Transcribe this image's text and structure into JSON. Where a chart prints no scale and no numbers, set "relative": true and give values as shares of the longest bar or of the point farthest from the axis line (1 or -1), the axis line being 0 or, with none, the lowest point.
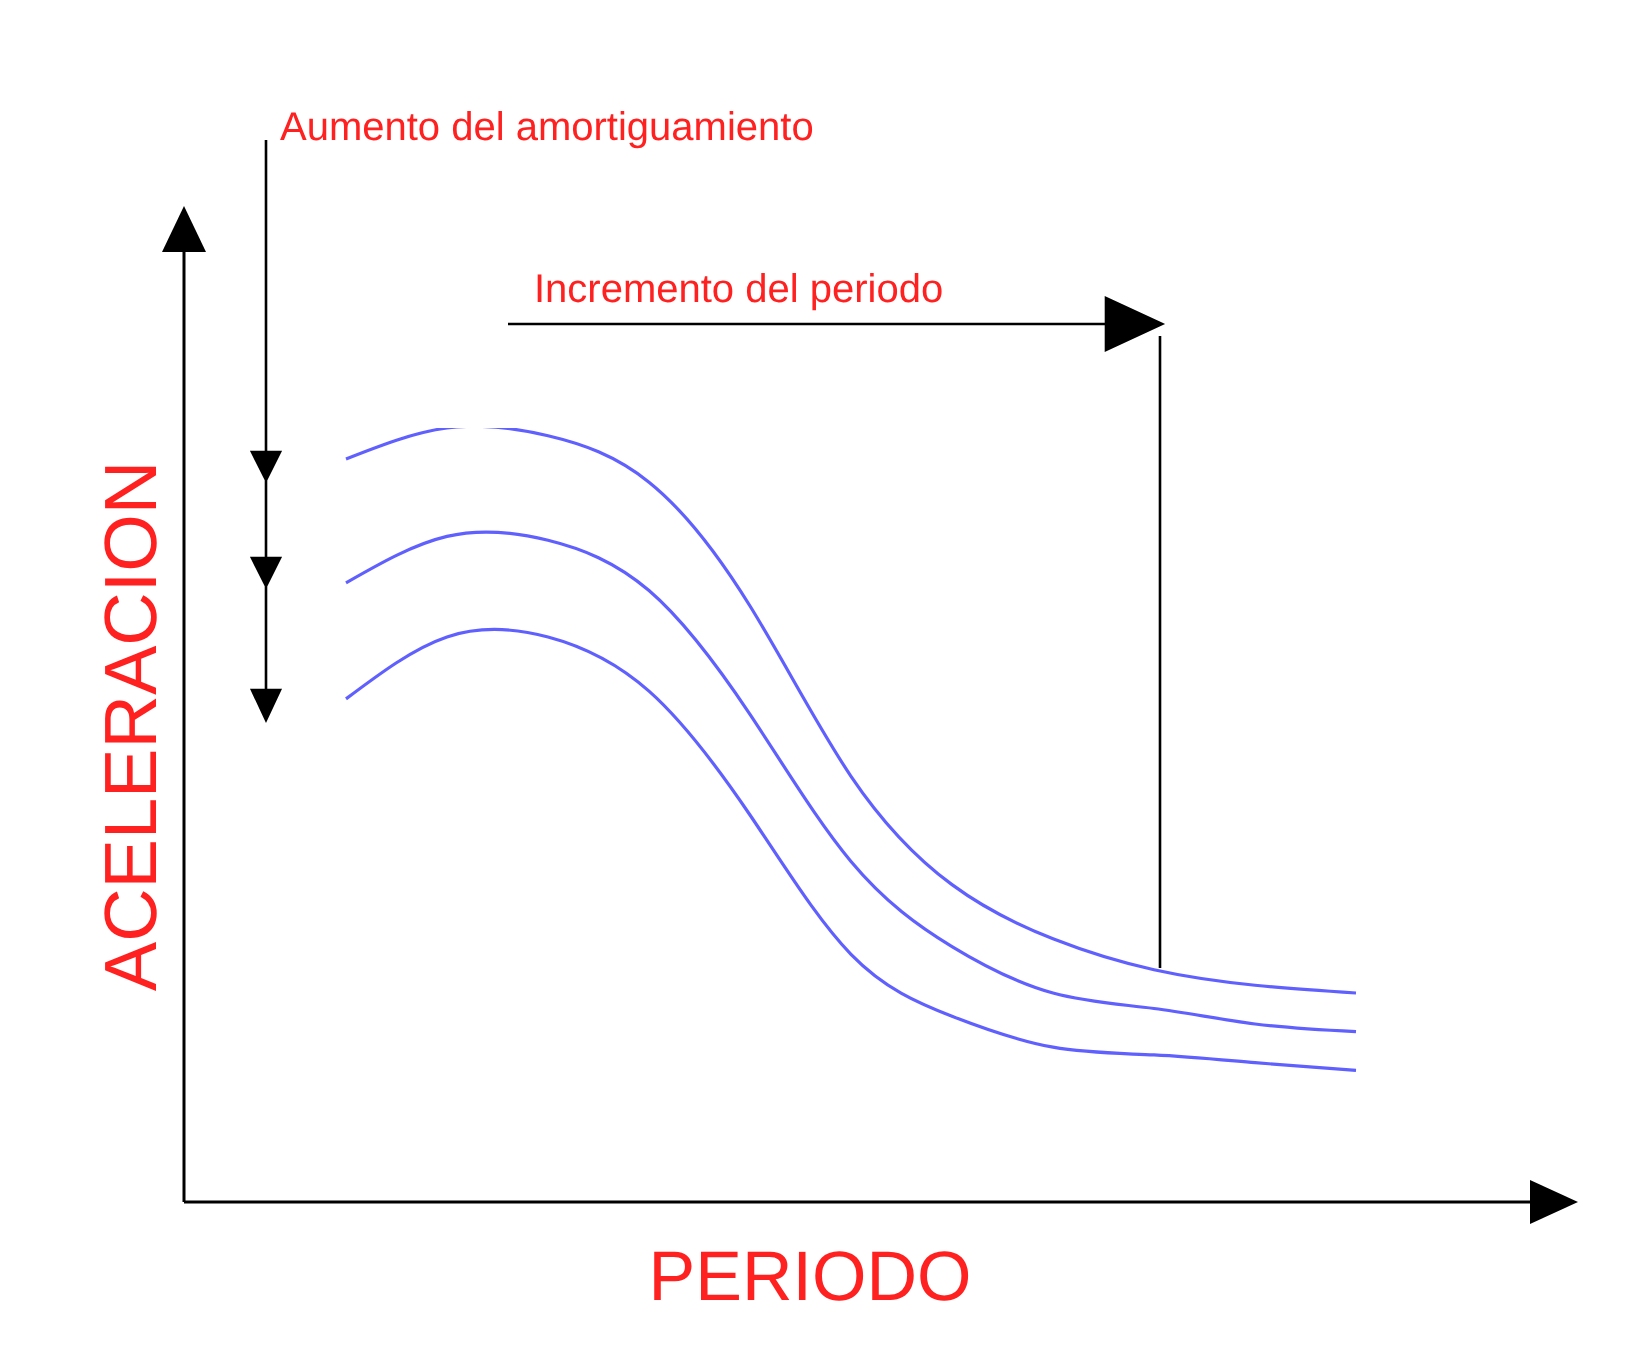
{
  "chart_data": {
    "type": "line",
    "relative": true,
    "xlabel": "PERIODO",
    "ylabel": "ACELERACION",
    "annotations": [
      "Aumento del amortiguamiento",
      "Incremento del periodo"
    ],
    "categories": [
      null,
      null,
      null,
      null,
      null,
      null,
      null,
      null,
      null,
      null,
      null
    ],
    "series": [
      {
        "color": "#6060ff",
        "values": [
          0.96,
          1,
          0.99,
          0.93,
          0.77,
          0.55,
          0.41,
          0.34,
          0.3,
          0.28,
          0.27
        ]
      },
      {
        "color": "#6060ff",
        "values": [
          0.8,
          0.86,
          0.855,
          0.79,
          0.63,
          0.44,
          0.33,
          0.27,
          0.25,
          0.23,
          0.22
        ]
      },
      {
        "color": "#6060ff",
        "values": [
          0.65,
          0.73,
          0.73,
          0.66,
          0.5,
          0.32,
          0.24,
          0.2,
          0.19,
          0.18,
          0.17
        ]
      }
    ]
  }
}
